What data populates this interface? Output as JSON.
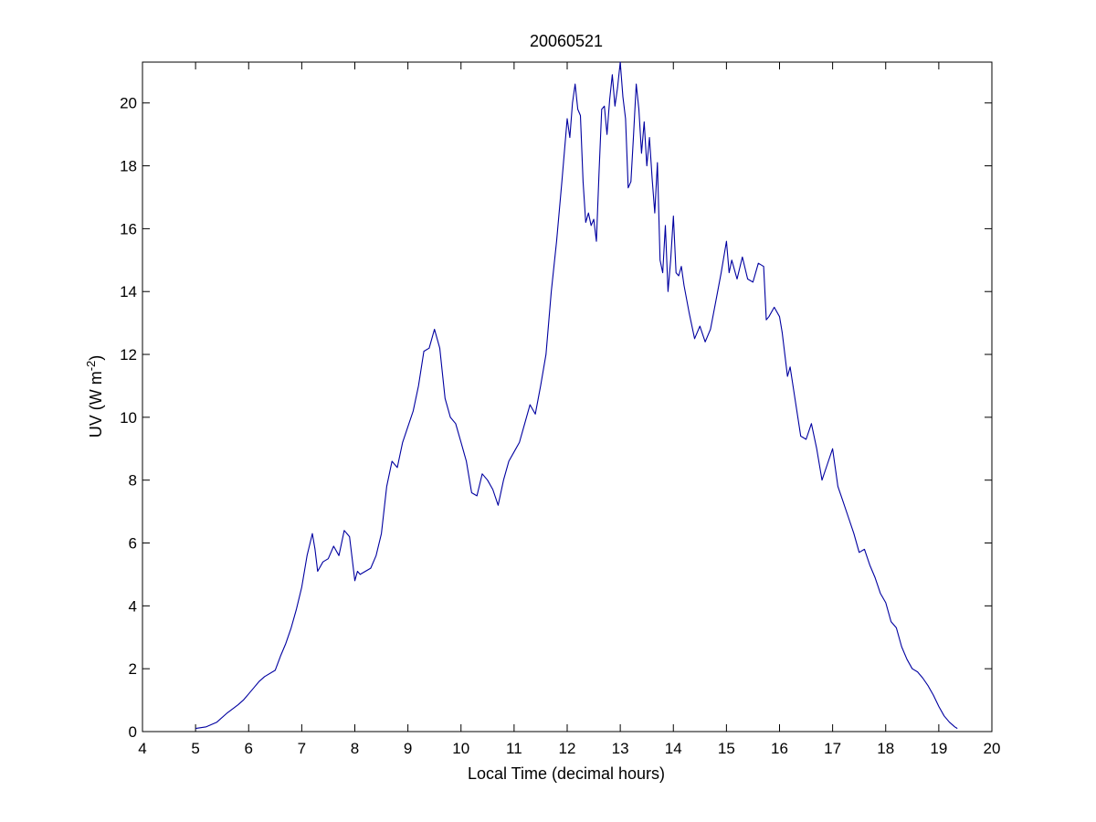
{
  "chart_data": {
    "type": "line",
    "title": "20060521",
    "xlabel": "Local Time (decimal hours)",
    "ylabel_main": "UV (W m",
    "ylabel_sup": "-2",
    "ylabel_tail": ")",
    "xlim": [
      4,
      20
    ],
    "ylim": [
      0,
      21.3
    ],
    "xticks": [
      4,
      5,
      6,
      7,
      8,
      9,
      10,
      11,
      12,
      13,
      14,
      15,
      16,
      17,
      18,
      19,
      20
    ],
    "yticks": [
      0,
      2,
      4,
      6,
      8,
      10,
      12,
      14,
      16,
      18,
      20
    ],
    "grid": false,
    "legend": "none",
    "line_color": "#0000a0",
    "series": [
      {
        "x": [
          5.0,
          5.2,
          5.4,
          5.6,
          5.8,
          5.9,
          6.0,
          6.1,
          6.2,
          6.3,
          6.5,
          6.6,
          6.7,
          6.8,
          6.9,
          7.0,
          7.1,
          7.2,
          7.25,
          7.3,
          7.4,
          7.5,
          7.6,
          7.7,
          7.8,
          7.9,
          8.0,
          8.05,
          8.1,
          8.2,
          8.3,
          8.4,
          8.5,
          8.6,
          8.7,
          8.8,
          8.9,
          9.0,
          9.1,
          9.2,
          9.3,
          9.4,
          9.5,
          9.6,
          9.7,
          9.8,
          9.9,
          10.0,
          10.1,
          10.2,
          10.3,
          10.4,
          10.5,
          10.6,
          10.7,
          10.8,
          10.9,
          11.0,
          11.1,
          11.2,
          11.3,
          11.4,
          11.5,
          11.6,
          11.7,
          11.8,
          11.9,
          12.0,
          12.05,
          12.1,
          12.15,
          12.2,
          12.25,
          12.3,
          12.35,
          12.4,
          12.45,
          12.5,
          12.55,
          12.6,
          12.65,
          12.7,
          12.75,
          12.8,
          12.85,
          12.9,
          12.95,
          13.0,
          13.05,
          13.1,
          13.15,
          13.2,
          13.25,
          13.3,
          13.35,
          13.4,
          13.45,
          13.5,
          13.55,
          13.6,
          13.65,
          13.7,
          13.75,
          13.8,
          13.85,
          13.9,
          13.95,
          14.0,
          14.05,
          14.1,
          14.15,
          14.2,
          14.3,
          14.4,
          14.5,
          14.6,
          14.7,
          14.8,
          14.9,
          15.0,
          15.05,
          15.1,
          15.2,
          15.3,
          15.4,
          15.5,
          15.6,
          15.7,
          15.75,
          15.8,
          15.9,
          16.0,
          16.05,
          16.1,
          16.15,
          16.2,
          16.3,
          16.4,
          16.5,
          16.6,
          16.7,
          16.8,
          16.9,
          17.0,
          17.1,
          17.2,
          17.3,
          17.4,
          17.5,
          17.6,
          17.7,
          17.8,
          17.9,
          18.0,
          18.1,
          18.2,
          18.3,
          18.4,
          18.5,
          18.6,
          18.7,
          18.8,
          18.9,
          19.0,
          19.1,
          19.2,
          19.3,
          19.35
        ],
        "y": [
          0.1,
          0.15,
          0.3,
          0.6,
          0.85,
          1.0,
          1.2,
          1.4,
          1.6,
          1.75,
          1.95,
          2.4,
          2.8,
          3.3,
          3.9,
          4.6,
          5.6,
          6.3,
          5.8,
          5.1,
          5.4,
          5.5,
          5.9,
          5.6,
          6.4,
          6.2,
          4.8,
          5.1,
          5.0,
          5.1,
          5.2,
          5.6,
          6.3,
          7.8,
          8.6,
          8.4,
          9.2,
          9.7,
          10.2,
          11.0,
          12.1,
          12.2,
          12.8,
          12.2,
          10.6,
          10.0,
          9.8,
          9.2,
          8.6,
          7.6,
          7.5,
          8.2,
          8.0,
          7.7,
          7.2,
          8.0,
          8.6,
          8.9,
          9.2,
          9.8,
          10.4,
          10.1,
          11.0,
          12.0,
          14.0,
          15.6,
          17.5,
          19.5,
          18.9,
          20.0,
          20.6,
          19.8,
          19.6,
          17.5,
          16.2,
          16.5,
          16.1,
          16.3,
          15.6,
          17.8,
          19.8,
          19.9,
          19.0,
          20.1,
          20.9,
          19.9,
          20.5,
          21.3,
          20.2,
          19.5,
          17.3,
          17.5,
          19.0,
          20.6,
          19.8,
          18.4,
          19.4,
          18.0,
          18.9,
          17.6,
          16.5,
          18.1,
          15.0,
          14.6,
          16.1,
          14.0,
          15.0,
          16.4,
          14.6,
          14.5,
          14.8,
          14.2,
          13.3,
          12.5,
          12.9,
          12.4,
          12.8,
          13.7,
          14.6,
          15.6,
          14.6,
          15.0,
          14.4,
          15.1,
          14.4,
          14.3,
          14.9,
          14.8,
          13.1,
          13.2,
          13.5,
          13.2,
          12.7,
          12.0,
          11.3,
          11.6,
          10.5,
          9.4,
          9.3,
          9.8,
          9.0,
          8.0,
          8.5,
          9.0,
          7.8,
          7.3,
          6.8,
          6.3,
          5.7,
          5.8,
          5.3,
          4.9,
          4.4,
          4.1,
          3.5,
          3.3,
          2.7,
          2.3,
          2.0,
          1.9,
          1.7,
          1.45,
          1.15,
          0.8,
          0.5,
          0.3,
          0.15,
          0.1
        ]
      }
    ]
  }
}
